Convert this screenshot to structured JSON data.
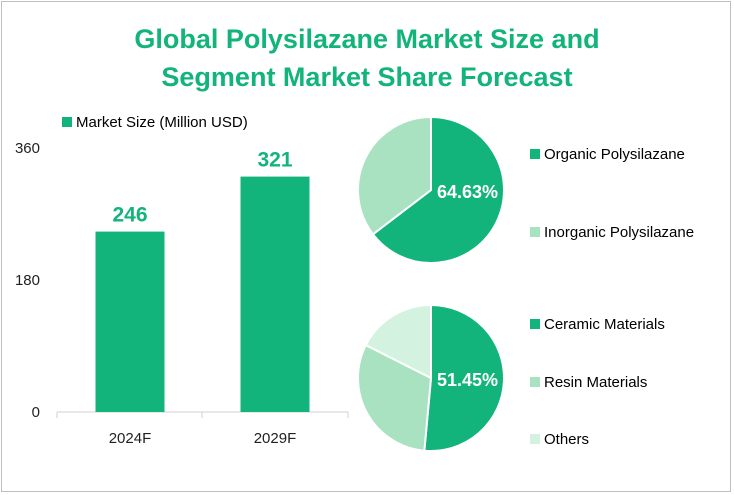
{
  "title_line1": "Global Polysilazane Market Size and",
  "title_line2": "Segment Market Share Forecast",
  "colors": {
    "title": "#12b47b",
    "bar": "#12b47b",
    "pie_main": "#12b47b",
    "pie_second": "#a8e2c1",
    "pie_third": "#d3f2df",
    "axis_text": "#222222",
    "axis_line": "#d0d0d0"
  },
  "chart_data": [
    {
      "type": "bar",
      "legend": "Market Size (Million USD)",
      "legend_position": "top-left",
      "categories": [
        "2024F",
        "2029F"
      ],
      "values": [
        246,
        321
      ],
      "value_labels": [
        "246",
        "321"
      ],
      "yticks": [
        "0",
        "180",
        "360"
      ],
      "ylim": [
        0,
        360
      ],
      "grid": false
    },
    {
      "type": "pie",
      "labels": [
        "Organic Polysilazane",
        "Inorganic Polysilazane"
      ],
      "values": [
        64.63,
        35.37
      ],
      "shown_label": "64.63%",
      "legend_position": "right"
    },
    {
      "type": "pie",
      "labels": [
        "Ceramic Materials",
        "Resin Materials",
        "Others"
      ],
      "values": [
        51.45,
        31.0,
        17.55
      ],
      "shown_label": "51.45%",
      "legend_position": "right"
    }
  ]
}
